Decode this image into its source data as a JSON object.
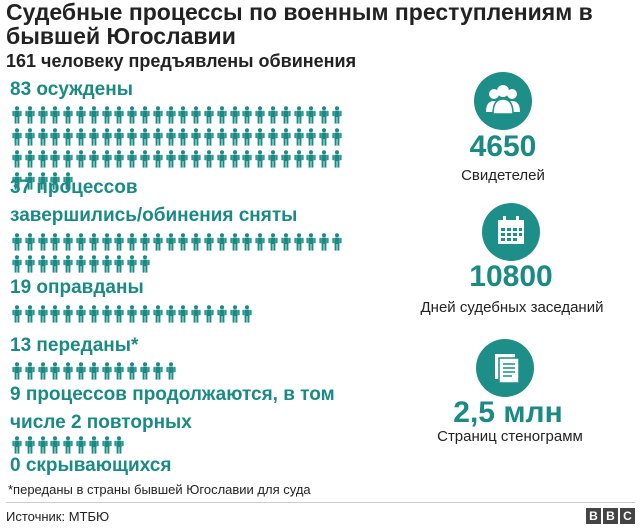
{
  "header": {
    "title": "Судебные процессы по военным преступлениям в бывшей Югославии",
    "subtitle": "161 человеку предъявлены обвинения"
  },
  "chart_data": {
    "type": "pictogram",
    "unit": "человек",
    "categories": [
      {
        "label": "83 осуждены",
        "value": 83
      },
      {
        "label": "37 процессов завершились/обинения сняты",
        "value": 37
      },
      {
        "label": "19 оправданы",
        "value": 19
      },
      {
        "label": "13 переданы*",
        "value": 13
      },
      {
        "label": "9 процессов продолжаются, в том числе 2 повторных",
        "value": 9
      },
      {
        "label": "0 скрывающихся",
        "value": 0
      }
    ],
    "total": 161
  },
  "labels": {
    "convicted": "83 осуждены",
    "completed_line1": "37 процессов",
    "completed_line2": "завершились/обинения сняты",
    "acquitted": "19 оправданы",
    "transferred": "13 переданы*",
    "ongoing_line1": "9 процессов продолжаются, в том",
    "ongoing_line2": "числе 2 повторных",
    "hiding": "0 скрывающихся"
  },
  "stats": [
    {
      "icon": "people-group-icon",
      "value": "4650",
      "caption": "Свидетелей"
    },
    {
      "icon": "calendar-icon",
      "value": "10800",
      "caption": "Дней судебных заседаний"
    },
    {
      "icon": "document-icon",
      "value": "2,5 млн",
      "caption": "Страниц стенограмм"
    }
  ],
  "footnote": "*переданы в страны бывшей Югославии для суда",
  "source": "Источник: МТБЮ",
  "logo": [
    "B",
    "B",
    "C"
  ],
  "colors": {
    "accent": "#1a8a84",
    "icon_bg": "#1e8e88",
    "text": "#222222"
  }
}
